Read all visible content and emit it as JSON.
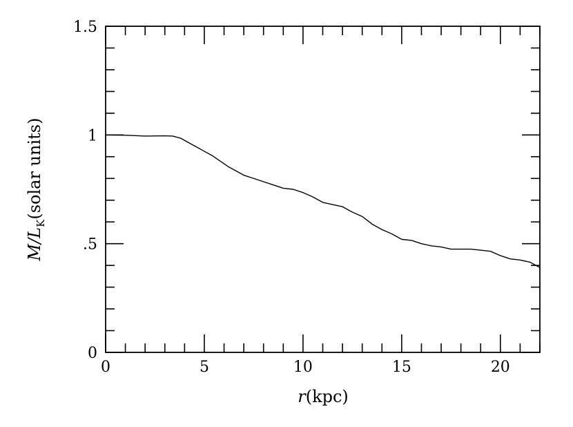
{
  "chart_data": {
    "type": "line",
    "title": "",
    "xlabel_var": "r",
    "xlabel_unit": "(kpc)",
    "ylabel_var": "M/L",
    "ylabel_sub": "K",
    "ylabel_unit": "(solar units)",
    "xlim": [
      0,
      22
    ],
    "ylim": [
      0,
      1.5
    ],
    "x_ticks": [
      {
        "value": 0,
        "label": "0"
      },
      {
        "value": 5,
        "label": "5"
      },
      {
        "value": 10,
        "label": "10"
      },
      {
        "value": 15,
        "label": "15"
      },
      {
        "value": 20,
        "label": "20"
      }
    ],
    "y_ticks": [
      {
        "value": 0,
        "label": "0"
      },
      {
        "value": 0.5,
        "label": ".5"
      },
      {
        "value": 1,
        "label": "1"
      },
      {
        "value": 1.5,
        "label": "1.5"
      }
    ],
    "x_minor_step": 1,
    "y_minor_step": 0.1,
    "grid": false,
    "series": [
      {
        "x": [
          0,
          1,
          2,
          3,
          3.4,
          3.8,
          4.2,
          4.6,
          5,
          5.4,
          5.8,
          6.2,
          6.6,
          7,
          7.5,
          8,
          8.5,
          9,
          9.5,
          10,
          10.5,
          11,
          11.5,
          12,
          12.5,
          13,
          13.5,
          14,
          14.5,
          15,
          15.5,
          16,
          16.5,
          17,
          17.5,
          18,
          18.5,
          19,
          19.5,
          20,
          20.5,
          21,
          21.5,
          22
        ],
        "y": [
          1.0,
          0.999,
          0.995,
          0.996,
          0.995,
          0.985,
          0.965,
          0.945,
          0.925,
          0.905,
          0.88,
          0.855,
          0.835,
          0.815,
          0.8,
          0.785,
          0.77,
          0.755,
          0.75,
          0.735,
          0.715,
          0.69,
          0.68,
          0.67,
          0.645,
          0.625,
          0.59,
          0.565,
          0.545,
          0.52,
          0.515,
          0.5,
          0.49,
          0.485,
          0.475,
          0.475,
          0.475,
          0.47,
          0.465,
          0.445,
          0.43,
          0.425,
          0.415,
          0.39
        ]
      }
    ]
  }
}
